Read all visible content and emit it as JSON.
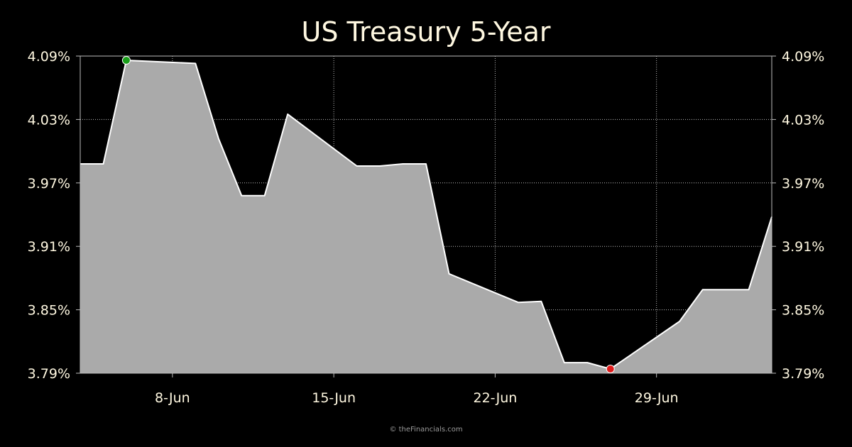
{
  "chart_data": {
    "type": "area",
    "title": "US Treasury 5-Year",
    "xlabel": "",
    "ylabel": "",
    "x_ticks": [
      {
        "label": "8-Jun",
        "day": 8
      },
      {
        "label": "15-Jun",
        "day": 15
      },
      {
        "label": "22-Jun",
        "day": 22
      },
      {
        "label": "29-Jun",
        "day": 29
      }
    ],
    "y_ticks": [
      "4.09%",
      "4.03%",
      "3.97%",
      "3.91%",
      "3.85%",
      "3.79%"
    ],
    "ylim": [
      3.79,
      4.09
    ],
    "xlim": [
      "4-Jun",
      "4-Jul"
    ],
    "grid": true,
    "series": [
      {
        "values": [
          {
            "x": "4-Jun",
            "y": 3.988
          },
          {
            "x": "5-Jun",
            "y": 3.988
          },
          {
            "x": "6-Jun",
            "y": 4.086
          },
          {
            "x": "9-Jun",
            "y": 4.083
          },
          {
            "x": "10-Jun",
            "y": 4.012
          },
          {
            "x": "11-Jun",
            "y": 3.958
          },
          {
            "x": "12-Jun",
            "y": 3.958
          },
          {
            "x": "13-Jun",
            "y": 4.035
          },
          {
            "x": "16-Jun",
            "y": 3.986
          },
          {
            "x": "17-Jun",
            "y": 3.986
          },
          {
            "x": "18-Jun",
            "y": 3.988
          },
          {
            "x": "19-Jun",
            "y": 3.988
          },
          {
            "x": "20-Jun",
            "y": 3.884
          },
          {
            "x": "23-Jun",
            "y": 3.857
          },
          {
            "x": "24-Jun",
            "y": 3.858
          },
          {
            "x": "25-Jun",
            "y": 3.8
          },
          {
            "x": "26-Jun",
            "y": 3.8
          },
          {
            "x": "27-Jun",
            "y": 3.794
          },
          {
            "x": "30-Jun",
            "y": 3.839
          },
          {
            "x": "1-Jul",
            "y": 3.869
          },
          {
            "x": "2-Jul",
            "y": 3.869
          },
          {
            "x": "3-Jul",
            "y": 3.869
          },
          {
            "x": "4-Jul",
            "y": 3.938
          }
        ]
      }
    ],
    "high_point": {
      "x": "6-Jun",
      "y": 4.086
    },
    "low_point": {
      "x": "27-Jun",
      "y": 3.794
    },
    "colors": {
      "background": "#000000",
      "area_fill": "#aaaaaa",
      "line": "#ffffff",
      "grid": "#bbbbbb",
      "text": "#fff8e1",
      "high_marker": "#1a9e1a",
      "low_marker": "#e01b1b"
    }
  },
  "footer": {
    "credit": "© theFinancials.com"
  }
}
